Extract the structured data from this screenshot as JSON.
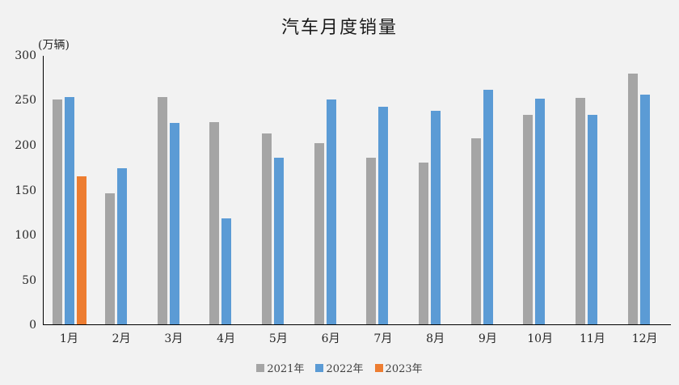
{
  "title": "汽车月度销量",
  "unit_label": "(万辆)",
  "background_color": "#f2f2f2",
  "axis_color": "#000000",
  "chart_data": {
    "type": "bar",
    "title": "汽车月度销量",
    "ylabel": "(万辆)",
    "xlabel": "",
    "categories": [
      "1月",
      "2月",
      "3月",
      "4月",
      "5月",
      "6月",
      "7月",
      "8月",
      "9月",
      "10月",
      "11月",
      "12月"
    ],
    "series": [
      {
        "name": "2021年",
        "color": "#a5a5a5",
        "values": [
          250,
          146,
          253,
          225,
          213,
          202,
          186,
          180,
          207,
          233,
          252,
          279
        ]
      },
      {
        "name": "2022年",
        "color": "#5b9bd5",
        "values": [
          253,
          174,
          224,
          118,
          186,
          250,
          242,
          238,
          261,
          251,
          233,
          256
        ]
      },
      {
        "name": "2023年",
        "color": "#ed7d31",
        "values": [
          165,
          null,
          null,
          null,
          null,
          null,
          null,
          null,
          null,
          null,
          null,
          null
        ]
      }
    ],
    "ylim": [
      0,
      300
    ],
    "yticks": [
      0,
      50,
      100,
      150,
      200,
      250,
      300
    ],
    "grid": false,
    "legend_position": "bottom"
  }
}
